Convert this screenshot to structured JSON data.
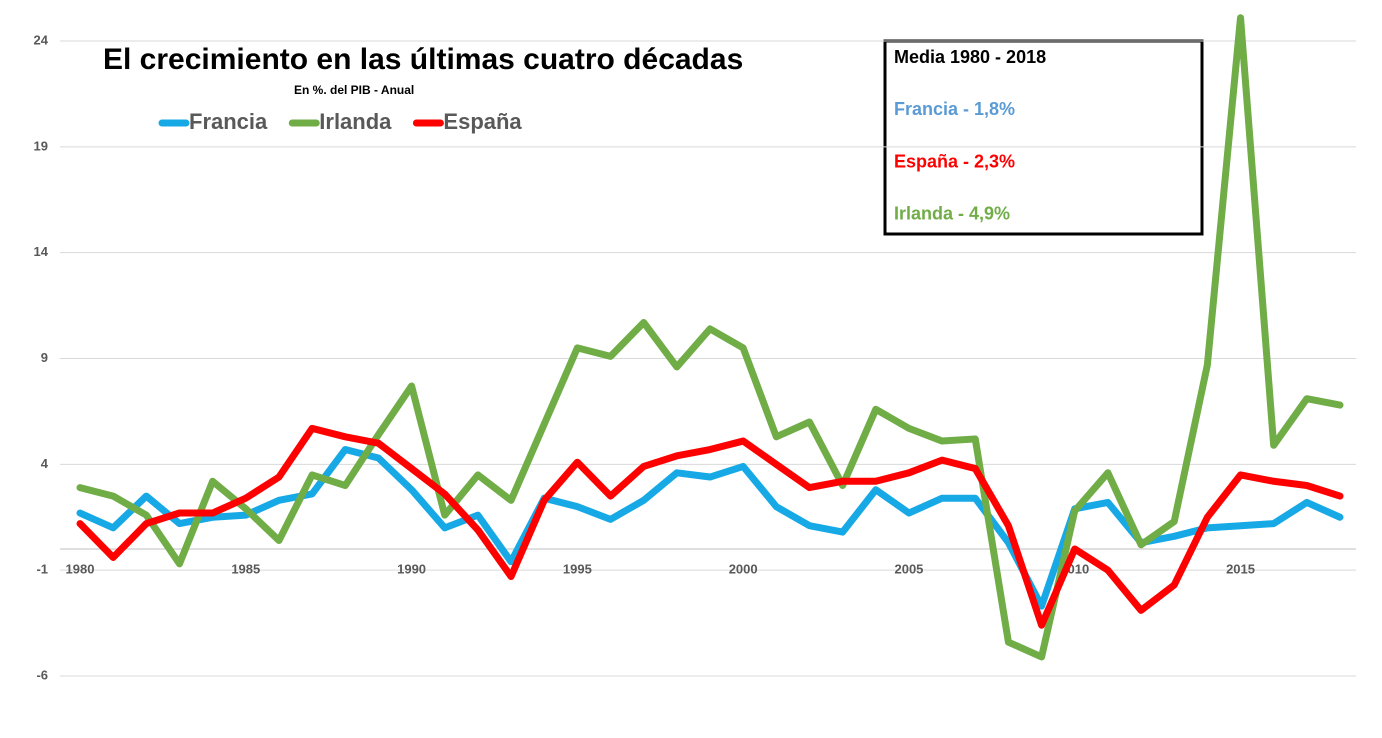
{
  "chart_data": {
    "type": "line",
    "title": "El crecimiento en las últimas cuatro décadas",
    "subtitle": "En %. del PIB - Anual",
    "x": [
      1980,
      1981,
      1982,
      1983,
      1984,
      1985,
      1986,
      1987,
      1988,
      1989,
      1990,
      1991,
      1992,
      1993,
      1994,
      1995,
      1996,
      1997,
      1998,
      1999,
      2000,
      2001,
      2002,
      2003,
      2004,
      2005,
      2006,
      2007,
      2008,
      2009,
      2010,
      2011,
      2012,
      2013,
      2014,
      2015,
      2016,
      2017,
      2018
    ],
    "xlim": [
      1980,
      2018
    ],
    "xticks": [
      1980,
      1985,
      1990,
      1995,
      2000,
      2005,
      2010,
      2015
    ],
    "ylim": [
      -6,
      24
    ],
    "yticks": [
      -6,
      -1,
      4,
      9,
      14,
      19,
      24
    ],
    "grid": true,
    "series": [
      {
        "name": "Francia",
        "color": "#17a9e6",
        "values": [
          1.7,
          1.0,
          2.5,
          1.2,
          1.5,
          1.6,
          2.3,
          2.6,
          4.7,
          4.3,
          2.8,
          1.0,
          1.6,
          -0.6,
          2.4,
          2.0,
          1.4,
          2.3,
          3.6,
          3.4,
          3.9,
          2.0,
          1.1,
          0.8,
          2.8,
          1.7,
          2.4,
          2.4,
          0.3,
          -2.7,
          1.9,
          2.2,
          0.3,
          0.6,
          1.0,
          1.1,
          1.2,
          2.2,
          1.5
        ]
      },
      {
        "name": "Irlanda",
        "color": "#70ad47",
        "values": [
          2.9,
          2.5,
          1.6,
          -0.7,
          3.2,
          1.9,
          0.4,
          3.5,
          3.0,
          5.4,
          7.7,
          1.6,
          3.5,
          2.3,
          5.9,
          9.5,
          9.1,
          10.7,
          8.6,
          10.4,
          9.5,
          5.3,
          6.0,
          3.0,
          6.6,
          5.7,
          5.1,
          5.2,
          -4.4,
          -5.1,
          1.8,
          3.6,
          0.2,
          1.3,
          8.7,
          25.1,
          4.9,
          7.1,
          6.8
        ]
      },
      {
        "name": "España",
        "color": "#ff0000",
        "values": [
          1.2,
          -0.4,
          1.2,
          1.7,
          1.7,
          2.4,
          3.4,
          5.7,
          5.3,
          5.0,
          3.8,
          2.6,
          0.9,
          -1.3,
          2.3,
          4.1,
          2.5,
          3.9,
          4.4,
          4.7,
          5.1,
          4.0,
          2.9,
          3.2,
          3.2,
          3.6,
          4.2,
          3.8,
          1.1,
          -3.6,
          0.0,
          -1.0,
          -2.9,
          -1.7,
          1.5,
          3.5,
          3.2,
          3.0,
          2.5
        ]
      }
    ],
    "annotations": [
      {
        "text": "Media 1980 - 2018",
        "color": "#000000"
      },
      {
        "text": "Francia - 1,8%",
        "color": "#5b9bd5"
      },
      {
        "text": "España - 2,3%",
        "color": "#ff0000"
      },
      {
        "text": "Irlanda - 4,9%",
        "color": "#70ad47"
      }
    ]
  }
}
